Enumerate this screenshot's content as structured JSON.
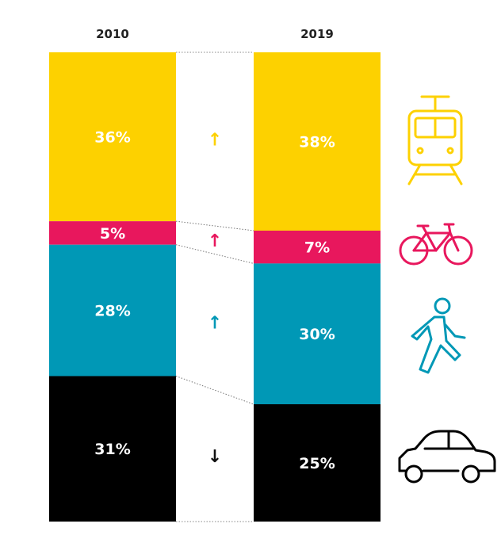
{
  "chart_data": {
    "type": "bar",
    "stacked": true,
    "normalized": true,
    "categories": [
      "2010",
      "2019"
    ],
    "series": [
      {
        "key": "tram",
        "values": [
          36,
          38
        ],
        "labels": [
          "36%",
          "38%"
        ],
        "color": "#FDD100",
        "trend": "↑",
        "icon": "tram-icon"
      },
      {
        "key": "bike",
        "values": [
          5,
          7
        ],
        "labels": [
          "5%",
          "7%"
        ],
        "color": "#E8175D",
        "trend": "↑",
        "icon": "bicycle-icon"
      },
      {
        "key": "walk",
        "values": [
          28,
          30
        ],
        "labels": [
          "28%",
          "30%"
        ],
        "color": "#0098B6",
        "trend": "↑",
        "icon": "pedestrian-icon"
      },
      {
        "key": "car",
        "values": [
          31,
          25
        ],
        "labels": [
          "31%",
          "25%"
        ],
        "color": "#000000",
        "trend": "↓",
        "icon": "car-icon"
      }
    ],
    "title": "",
    "xlabel": "",
    "ylabel": "",
    "ylim": [
      0,
      100
    ],
    "grid": false,
    "legend": "right (icons)"
  }
}
